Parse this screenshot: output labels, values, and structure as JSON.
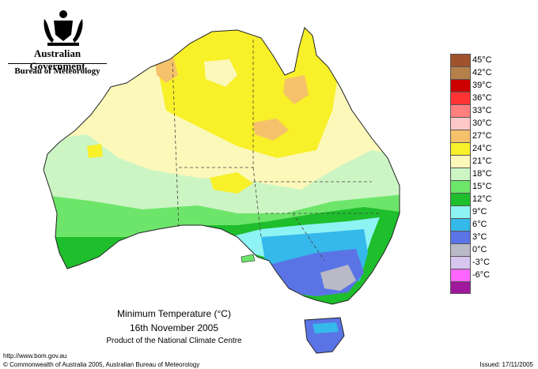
{
  "header": {
    "government": "Australian Government",
    "bureau": "Bureau of Meteorology"
  },
  "title": {
    "line1": "Minimum Temperature (°C)",
    "line2": "16th November 2005",
    "line3": "Product of the National Climate Centre"
  },
  "footer": {
    "url": "http://www.bom.gov.au",
    "copyright": "© Commonwealth of Australia 2005, Australian Bureau of Meteorology",
    "issued": "Issued: 17/11/2005"
  },
  "legend": [
    {
      "label": "45°C",
      "color": "#a0522d"
    },
    {
      "label": "42°C",
      "color": "#b5804a"
    },
    {
      "label": "39°C",
      "color": "#cc0000"
    },
    {
      "label": "36°C",
      "color": "#ff3333"
    },
    {
      "label": "33°C",
      "color": "#ff7f7f"
    },
    {
      "label": "30°C",
      "color": "#ffc8c8"
    },
    {
      "label": "27°C",
      "color": "#f5c26b"
    },
    {
      "label": "24°C",
      "color": "#f8f028"
    },
    {
      "label": "21°C",
      "color": "#fbf8b9"
    },
    {
      "label": "18°C",
      "color": "#ccf5c4"
    },
    {
      "label": "15°C",
      "color": "#6de56a"
    },
    {
      "label": "12°C",
      "color": "#1ebe2c"
    },
    {
      "label": "9°C",
      "color": "#8ef3f3"
    },
    {
      "label": "6°C",
      "color": "#35b8ea"
    },
    {
      "label": "3°C",
      "color": "#5a74e6"
    },
    {
      "label": "0°C",
      "color": "#b9b9c8"
    },
    {
      "label": "-3°C",
      "color": "#d6c6f0"
    },
    {
      "label": "-6°C",
      "color": "#ff66ff"
    },
    {
      "label": "",
      "color": "#a0189c"
    }
  ]
}
